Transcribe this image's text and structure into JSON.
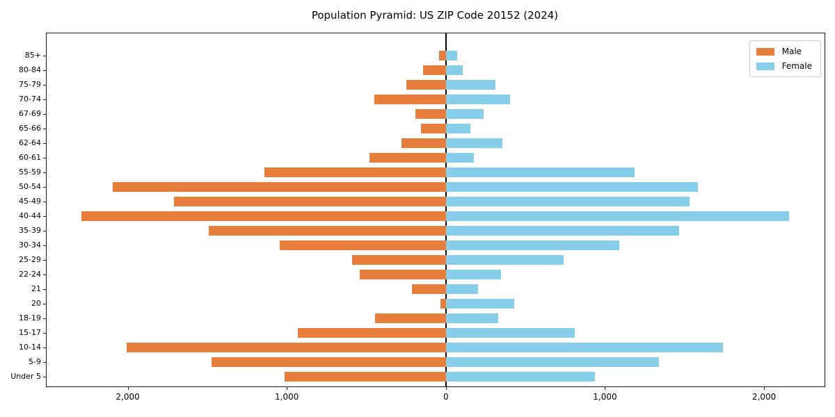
{
  "chart_data": {
    "type": "bar",
    "orientation": "horizontal-pyramid",
    "title": "Population Pyramid: US ZIP Code 20152 (2024)",
    "categories": [
      "85+",
      "80-84",
      "75-79",
      "70-74",
      "67-69",
      "65-66",
      "62-64",
      "60-61",
      "55-59",
      "50-54",
      "45-49",
      "40-44",
      "35-39",
      "30-34",
      "25-29",
      "22-24",
      "21",
      "20",
      "18-19",
      "15-17",
      "10-14",
      "5-9",
      "Under 5"
    ],
    "series": [
      {
        "name": "Male",
        "side": "left",
        "color": "#e87e3c",
        "values": [
          45,
          145,
          250,
          450,
          190,
          155,
          280,
          480,
          1140,
          2095,
          1710,
          2290,
          1490,
          1045,
          590,
          540,
          215,
          35,
          445,
          930,
          2005,
          1475,
          1015
        ]
      },
      {
        "name": "Female",
        "side": "right",
        "color": "#87ceeb",
        "values": [
          70,
          105,
          310,
          405,
          235,
          155,
          355,
          175,
          1185,
          1585,
          1530,
          2155,
          1465,
          1090,
          740,
          345,
          200,
          430,
          330,
          810,
          1740,
          1340,
          935
        ]
      }
    ],
    "xlim": [
      -2510,
      2380
    ],
    "x_ticks": [
      {
        "value": -2000,
        "label": "2,000"
      },
      {
        "value": -1000,
        "label": "1,000"
      },
      {
        "value": 0,
        "label": "0"
      },
      {
        "value": 1000,
        "label": "1,000"
      },
      {
        "value": 2000,
        "label": "2,000"
      }
    ],
    "legend_position": "upper-right",
    "grid": false,
    "axis_color": "#1a1a1a",
    "centerline_color": "#000000"
  }
}
